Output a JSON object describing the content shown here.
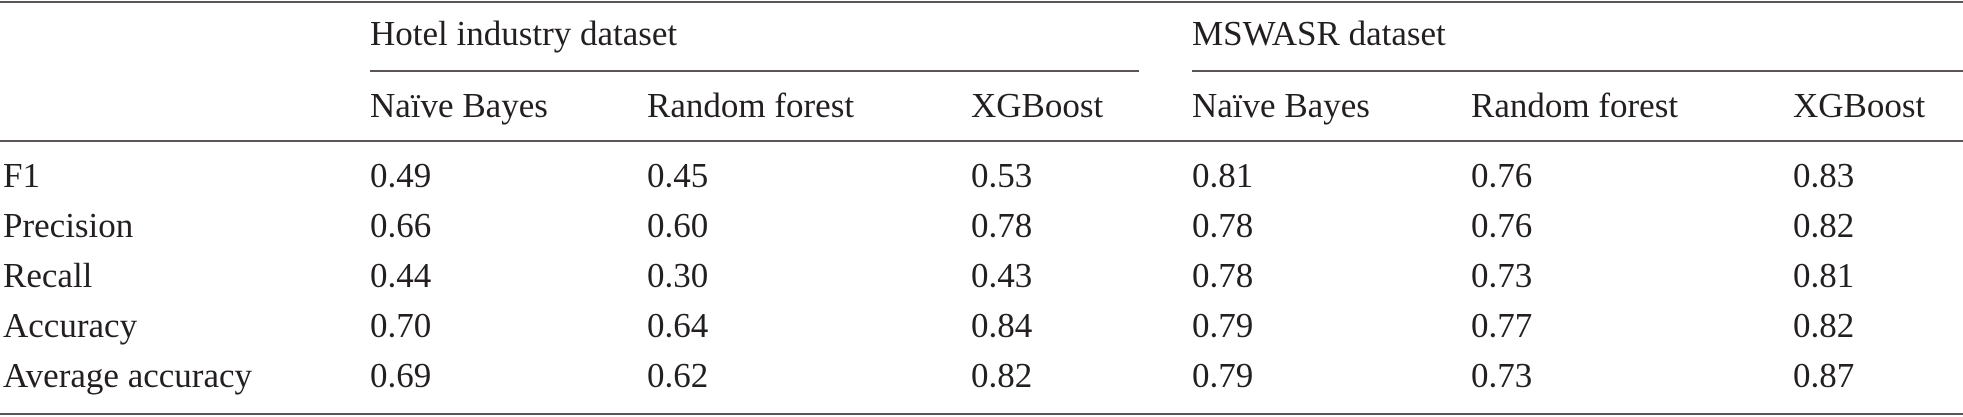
{
  "table": {
    "groups": [
      "Hotel industry dataset",
      "MSWASR dataset"
    ],
    "columns": [
      "Naïve Bayes",
      "Random forest",
      "XGBoost",
      "Naïve Bayes",
      "Random forest",
      "XGBoost"
    ],
    "rows": [
      [
        "F1",
        "0.49",
        "0.45",
        "0.53",
        "0.81",
        "0.76",
        "0.83"
      ],
      [
        "Precision",
        "0.66",
        "0.60",
        "0.78",
        "0.78",
        "0.76",
        "0.82"
      ],
      [
        "Recall",
        "0.44",
        "0.30",
        "0.43",
        "0.78",
        "0.73",
        "0.81"
      ],
      [
        "Accuracy",
        "0.70",
        "0.64",
        "0.84",
        "0.79",
        "0.77",
        "0.82"
      ],
      [
        "Average accuracy",
        "0.69",
        "0.62",
        "0.82",
        "0.79",
        "0.73",
        "0.87"
      ]
    ]
  }
}
